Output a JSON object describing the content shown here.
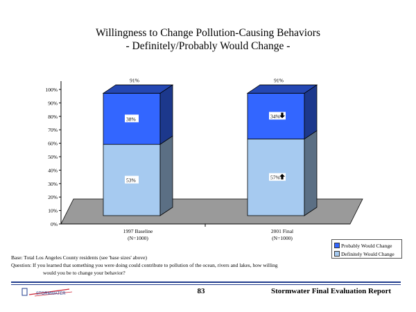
{
  "title_line1": "Willingness to Change Pollution-Causing Behaviors",
  "title_line2": "- Definitely/Probably Would Change -",
  "chart_data": {
    "type": "bar",
    "stacked": true,
    "three_d": true,
    "categories": [
      "1997 Baseline\n(N=1000)",
      "2001 Final\n(N=1000)"
    ],
    "series": [
      {
        "name": "Definitely Would Change",
        "values": [
          53,
          57
        ],
        "color": "#a6caf0",
        "labels": [
          "53%",
          "57%"
        ],
        "trend": [
          "",
          "up"
        ]
      },
      {
        "name": "Probably Would Change",
        "values": [
          38,
          34
        ],
        "color": "#3366ff",
        "labels": [
          "38%",
          "34%"
        ],
        "trend": [
          "",
          "down"
        ]
      }
    ],
    "totals": [
      "91%",
      "91%"
    ],
    "ylim": [
      0,
      100
    ],
    "yticks": [
      "0%",
      "10%",
      "20%",
      "30%",
      "40%",
      "50%",
      "60%",
      "70%",
      "80%",
      "90%",
      "100%"
    ],
    "legend_position": "bottom-right"
  },
  "legend": [
    {
      "label": "Probably Would Change",
      "color": "#3366ff"
    },
    {
      "label": "Definitely Would Change",
      "color": "#a6caf0"
    }
  ],
  "notes": {
    "base": "Base: Total Los Angeles County residents (see 'base sizes' above)",
    "question": "Question: If you learned that something you were doing could contribute to pollution of the ocean, rivers and lakes, how willing",
    "question_cont": "would you be to change your behavior?"
  },
  "footer": {
    "page_number": "83",
    "report_title": "Stormwater Final Evaluation Report",
    "logo_text": "STORMWATER"
  }
}
